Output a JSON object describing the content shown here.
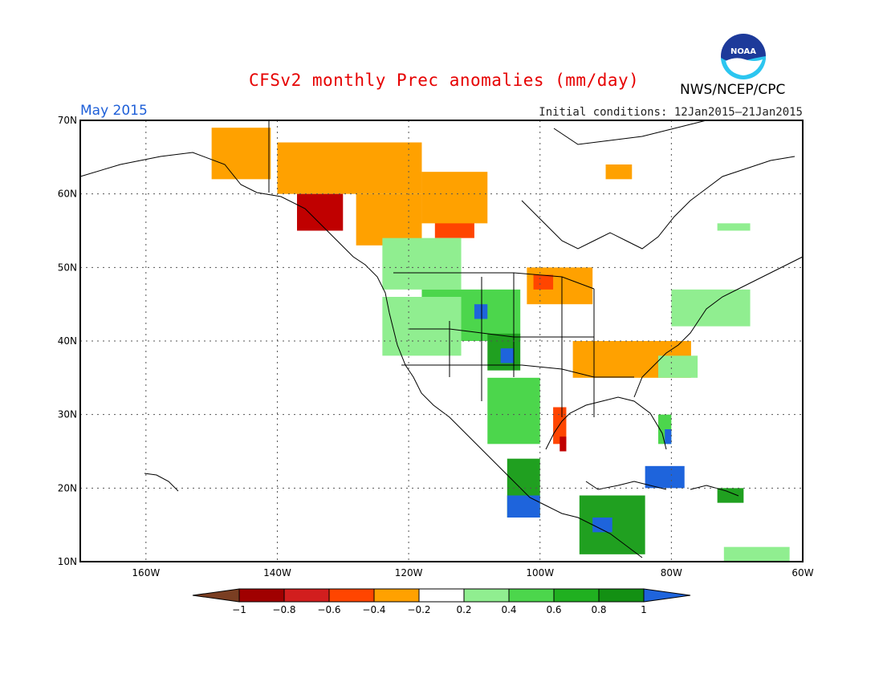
{
  "header": {
    "title": "CFSv2 monthly Prec anomalies (mm/day)",
    "agency": "NWS/NCEP/CPC",
    "logo_text": "NOAA",
    "period": "May 2015",
    "initial_conditions": "Initial conditions: 12Jan2015–21Jan2015"
  },
  "map": {
    "projection": "lat-lon",
    "lon_range": [
      -170,
      -60
    ],
    "lat_range": [
      10,
      70
    ],
    "grid": true,
    "lat_ticks": [
      {
        "value": 70,
        "label": "70N"
      },
      {
        "value": 60,
        "label": "60N"
      },
      {
        "value": 50,
        "label": "50N"
      },
      {
        "value": 40,
        "label": "40N"
      },
      {
        "value": 30,
        "label": "30N"
      },
      {
        "value": 20,
        "label": "20N"
      },
      {
        "value": 10,
        "label": "10N"
      }
    ],
    "lon_ticks": [
      {
        "value": -160,
        "label": "160W"
      },
      {
        "value": -140,
        "label": "140W"
      },
      {
        "value": -120,
        "label": "120W"
      },
      {
        "value": -100,
        "label": "100W"
      },
      {
        "value": -80,
        "label": "80W"
      },
      {
        "value": -60,
        "label": "60W"
      }
    ],
    "anomaly_regions": [
      {
        "name": "n-alaska-dry",
        "color": "#ffa100",
        "lon": [
          -150,
          -141
        ],
        "lat": [
          62,
          69
        ]
      },
      {
        "name": "nw-canada-dry",
        "color": "#ffa100",
        "lon": [
          -140,
          -118
        ],
        "lat": [
          60,
          67
        ]
      },
      {
        "name": "w-canada-dry",
        "color": "#ffa100",
        "lon": [
          -128,
          -118
        ],
        "lat": [
          53,
          60
        ]
      },
      {
        "name": "yukon-moderate-dry",
        "color": "#ff4500",
        "lon": [
          -116,
          -110
        ],
        "lat": [
          54,
          60
        ]
      },
      {
        "name": "bc-coast-dry",
        "color": "#c00000",
        "lon": [
          -137,
          -130
        ],
        "lat": [
          55,
          60
        ]
      },
      {
        "name": "alberta-dry",
        "color": "#ffa100",
        "lon": [
          -118,
          -108
        ],
        "lat": [
          56,
          63
        ]
      },
      {
        "name": "hudson-dry",
        "color": "#ffa100",
        "lon": [
          -90,
          -86
        ],
        "lat": [
          62,
          64
        ]
      },
      {
        "name": "ontario-dry",
        "color": "#ffa100",
        "lon": [
          -102,
          -92
        ],
        "lat": [
          45,
          50
        ]
      },
      {
        "name": "ontario-mod-dry",
        "color": "#ff4500",
        "lon": [
          -101,
          -98
        ],
        "lat": [
          47,
          49
        ]
      },
      {
        "name": "pacnw-wet",
        "color": "#90ee90",
        "lon": [
          -124,
          -112
        ],
        "lat": [
          47,
          54
        ]
      },
      {
        "name": "rockies-wet",
        "color": "#4cd64c",
        "lon": [
          -118,
          -103
        ],
        "lat": [
          40,
          47
        ]
      },
      {
        "name": "colorado-wet",
        "color": "#20a020",
        "lon": [
          -108,
          -103
        ],
        "lat": [
          36,
          41
        ]
      },
      {
        "name": "colorado-very-wet",
        "color": "#1e64dc",
        "lon": [
          -106,
          -104
        ],
        "lat": [
          37,
          39
        ]
      },
      {
        "name": "great-basin-wet",
        "color": "#90ee90",
        "lon": [
          -124,
          -112
        ],
        "lat": [
          38,
          46
        ]
      },
      {
        "name": "montana-very-wet",
        "color": "#1e64dc",
        "lon": [
          -110,
          -108
        ],
        "lat": [
          43,
          45
        ]
      },
      {
        "name": "ohio-valley-dry",
        "color": "#ff4500",
        "lon": [
          -92,
          -80
        ],
        "lat": [
          36,
          40
        ]
      },
      {
        "name": "ohio-valley-light-dry",
        "color": "#ffa100",
        "lon": [
          -95,
          -77
        ],
        "lat": [
          35,
          40
        ]
      },
      {
        "name": "texas-wet",
        "color": "#4cd64c",
        "lon": [
          -108,
          -100
        ],
        "lat": [
          26,
          35
        ]
      },
      {
        "name": "texas-coast-dry",
        "color": "#ff4500",
        "lon": [
          -98,
          -96
        ],
        "lat": [
          26,
          31
        ]
      },
      {
        "name": "texas-coast-very-dry",
        "color": "#c00000",
        "lon": [
          -97,
          -96
        ],
        "lat": [
          25,
          27
        ]
      },
      {
        "name": "mexico-wet",
        "color": "#20a020",
        "lon": [
          -105,
          -100
        ],
        "lat": [
          16,
          24
        ]
      },
      {
        "name": "mexico-very-wet",
        "color": "#1e64dc",
        "lon": [
          -105,
          -100
        ],
        "lat": [
          16,
          19
        ]
      },
      {
        "name": "central-america-wet",
        "color": "#20a020",
        "lon": [
          -94,
          -84
        ],
        "lat": [
          11,
          19
        ]
      },
      {
        "name": "central-america-very-wet",
        "color": "#1e64dc",
        "lon": [
          -92,
          -89
        ],
        "lat": [
          14,
          16
        ]
      },
      {
        "name": "florida-wet",
        "color": "#4cd64c",
        "lon": [
          -82,
          -80
        ],
        "lat": [
          26,
          30
        ]
      },
      {
        "name": "florida-very-wet",
        "color": "#1e64dc",
        "lon": [
          -81,
          -80
        ],
        "lat": [
          26,
          28
        ]
      },
      {
        "name": "cuba-very-wet",
        "color": "#1e64dc",
        "lon": [
          -84,
          -78
        ],
        "lat": [
          20,
          23
        ]
      },
      {
        "name": "hispaniola-wet",
        "color": "#20a020",
        "lon": [
          -73,
          -69
        ],
        "lat": [
          18,
          20
        ]
      },
      {
        "name": "ne-us-wet",
        "color": "#90ee90",
        "lon": [
          -80,
          -68
        ],
        "lat": [
          42,
          47
        ]
      },
      {
        "name": "se-us-wet",
        "color": "#90ee90",
        "lon": [
          -82,
          -76
        ],
        "lat": [
          35,
          38
        ]
      },
      {
        "name": "n-quebec-wet",
        "color": "#90ee90",
        "lon": [
          -73,
          -68
        ],
        "lat": [
          55,
          56
        ]
      },
      {
        "name": "venezuela-wet",
        "color": "#90ee90",
        "lon": [
          -72,
          -62
        ],
        "lat": [
          10,
          12
        ]
      }
    ]
  },
  "colorbar": {
    "colors": [
      "#7a3e22",
      "#a00000",
      "#d21e1e",
      "#ff4500",
      "#ffa100",
      "#ffffff",
      "#90ee90",
      "#4cd64c",
      "#20b020",
      "#139013",
      "#1e64dc"
    ],
    "labels": [
      "−1",
      "−0.8",
      "−0.6",
      "−0.4",
      "−0.2",
      "0.2",
      "0.4",
      "0.6",
      "0.8",
      "1"
    ]
  }
}
